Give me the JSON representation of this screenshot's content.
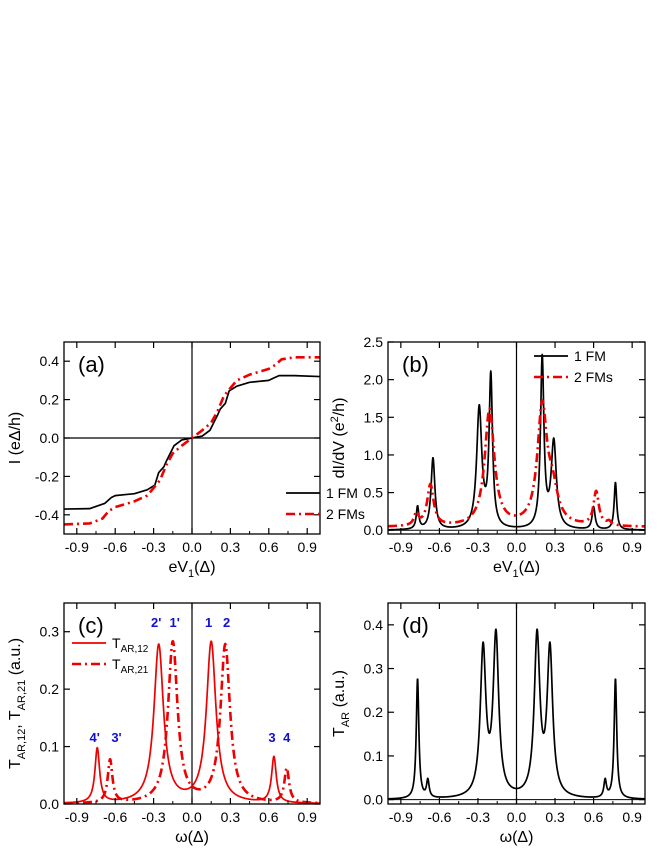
{
  "chart_data": [
    {
      "id": "a",
      "type": "line",
      "panel_label": "(a)",
      "xlabel": "eV1(Δ)",
      "xlabel_main": "eV",
      "xlabel_sub": "1",
      "xlabel_tail": "(Δ)",
      "ylabel": "I (eΔ/h)",
      "xlim": [
        -1.0,
        1.0
      ],
      "ylim": [
        -0.5,
        0.5
      ],
      "xticks": [
        -0.9,
        -0.6,
        -0.3,
        0.0,
        0.3,
        0.6,
        0.9
      ],
      "xtick_labels": [
        "-0.9",
        "-0.6",
        "-0.3",
        "0.0",
        "0.3",
        "0.6",
        "0.9"
      ],
      "yticks": [
        -0.4,
        -0.2,
        0.0,
        0.2,
        0.4
      ],
      "ytick_labels": [
        "-0.4",
        "-0.2",
        "0.0",
        "0.2",
        "0.4"
      ],
      "legend_position": "bottom-right",
      "series": [
        {
          "name": "1 FM",
          "color": "#000000",
          "style": "solid",
          "x": [
            -1.0,
            -0.8,
            -0.68,
            -0.63,
            -0.6,
            -0.45,
            -0.35,
            -0.29,
            -0.26,
            -0.22,
            -0.2,
            -0.17,
            -0.14,
            -0.08,
            0.0,
            0.08,
            0.14,
            0.17,
            0.2,
            0.22,
            0.26,
            0.29,
            0.35,
            0.45,
            0.6,
            0.63,
            0.68,
            0.8,
            1.0
          ],
          "y": [
            -0.37,
            -0.368,
            -0.34,
            -0.31,
            -0.3,
            -0.29,
            -0.27,
            -0.245,
            -0.18,
            -0.15,
            -0.12,
            -0.08,
            -0.04,
            -0.01,
            0.0,
            0.01,
            0.04,
            0.08,
            0.12,
            0.15,
            0.18,
            0.245,
            0.27,
            0.29,
            0.3,
            0.31,
            0.325,
            0.325,
            0.32
          ]
        },
        {
          "name": "2 FMs",
          "color": "#ee0000",
          "style": "dashdot",
          "x": [
            -1.0,
            -0.8,
            -0.7,
            -0.65,
            -0.6,
            -0.45,
            -0.35,
            -0.25,
            -0.2,
            -0.15,
            -0.08,
            0.0,
            0.08,
            0.15,
            0.2,
            0.25,
            0.35,
            0.45,
            0.6,
            0.65,
            0.7,
            0.8,
            1.0
          ],
          "y": [
            -0.45,
            -0.445,
            -0.42,
            -0.38,
            -0.36,
            -0.33,
            -0.3,
            -0.22,
            -0.14,
            -0.08,
            -0.04,
            0.0,
            0.04,
            0.08,
            0.14,
            0.22,
            0.3,
            0.33,
            0.36,
            0.38,
            0.41,
            0.42,
            0.42
          ]
        }
      ]
    },
    {
      "id": "b",
      "type": "line",
      "panel_label": "(b)",
      "xlabel": "eV1(Δ)",
      "xlabel_main": "eV",
      "xlabel_sub": "1",
      "xlabel_tail": "(Δ)",
      "ylabel": "dI/dV (e²/h)",
      "ylabel_main": "dI/dV (e",
      "ylabel_sup": "2",
      "ylabel_tail": "/h)",
      "xlim": [
        -1.0,
        1.0
      ],
      "ylim": [
        -0.05,
        2.5
      ],
      "xticks": [
        -0.9,
        -0.6,
        -0.3,
        0.0,
        0.3,
        0.6,
        0.9
      ],
      "xtick_labels": [
        "-0.9",
        "-0.6",
        "-0.3",
        "0.0",
        "0.3",
        "0.6",
        "0.9"
      ],
      "yticks": [
        0.0,
        0.5,
        1.0,
        1.5,
        2.0,
        2.5
      ],
      "ytick_labels": [
        "0.0",
        "0.5",
        "1.0",
        "1.5",
        "2.0",
        "2.5"
      ],
      "legend_position": "top-right",
      "series": [
        {
          "name": "1 FM",
          "color": "#000000",
          "style": "solid",
          "baseline": 0.0,
          "peaks": [
            [
              -0.77,
              0.3,
              0.012
            ],
            [
              -0.65,
              0.95,
              0.018
            ],
            [
              -0.29,
              1.6,
              0.024
            ],
            [
              -0.2,
              2.0,
              0.016
            ],
            [
              0.2,
              2.25,
              0.016
            ],
            [
              0.29,
              1.15,
              0.024
            ],
            [
              0.6,
              0.3,
              0.014
            ],
            [
              0.77,
              0.63,
              0.012
            ]
          ]
        },
        {
          "name": "2 FMs",
          "color": "#ee0000",
          "style": "dashdot",
          "baseline": 0.04,
          "peaks": [
            [
              -0.78,
              0.16,
              0.02
            ],
            [
              -0.67,
              0.55,
              0.03
            ],
            [
              -0.21,
              1.55,
              0.045
            ],
            [
              0.2,
              1.55,
              0.045
            ],
            [
              0.28,
              0.4,
              0.05
            ],
            [
              0.62,
              0.45,
              0.025
            ],
            [
              0.72,
              0.05,
              0.02
            ]
          ]
        }
      ]
    },
    {
      "id": "c",
      "type": "line",
      "panel_label": "(c)",
      "xlabel": "ω(Δ)",
      "ylabel": "TAR,12, TAR,21 (a.u.)",
      "xlim": [
        -1.0,
        1.0
      ],
      "ylim": [
        0.0,
        0.35
      ],
      "xticks": [
        -0.9,
        -0.6,
        -0.3,
        0.0,
        0.3,
        0.6,
        0.9
      ],
      "xtick_labels": [
        "-0.9",
        "-0.6",
        "-0.3",
        "0.0",
        "0.3",
        "0.6",
        "0.9"
      ],
      "yticks": [
        0.0,
        0.1,
        0.2,
        0.3
      ],
      "ytick_labels": [
        "0.0",
        "0.1",
        "0.2",
        "0.3"
      ],
      "legend_position": "top-left",
      "series": [
        {
          "name": "TAR,12",
          "color": "#ee0000",
          "style": "solid",
          "baseline": 0.0,
          "peaks": [
            [
              -0.74,
              0.095,
              0.022
            ],
            [
              -0.26,
              0.275,
              0.045
            ],
            [
              0.15,
              0.28,
              0.045
            ],
            [
              0.64,
              0.08,
              0.022
            ]
          ]
        },
        {
          "name": "TAR,21",
          "color": "#ee0000",
          "style": "dashdot",
          "baseline": 0.0,
          "peaks": [
            [
              -0.64,
              0.075,
              0.022
            ],
            [
              -0.15,
              0.28,
              0.045
            ],
            [
              0.26,
              0.275,
              0.045
            ],
            [
              0.74,
              0.06,
              0.022
            ]
          ]
        }
      ],
      "annotations": [
        {
          "text": "4'",
          "x": -0.76,
          "y": 0.108
        },
        {
          "text": "3'",
          "x": -0.59,
          "y": 0.108
        },
        {
          "text": "2'",
          "x": -0.28,
          "y": 0.308
        },
        {
          "text": "1'",
          "x": -0.135,
          "y": 0.308
        },
        {
          "text": "1",
          "x": 0.13,
          "y": 0.308
        },
        {
          "text": "2",
          "x": 0.27,
          "y": 0.308
        },
        {
          "text": "3",
          "x": 0.625,
          "y": 0.108
        },
        {
          "text": "4",
          "x": 0.74,
          "y": 0.108
        }
      ]
    },
    {
      "id": "d",
      "type": "line",
      "panel_label": "(d)",
      "xlabel": "ω(Δ)",
      "ylabel": "TAR (a.u.)",
      "xlim": [
        -1.0,
        1.0
      ],
      "ylim": [
        -0.01,
        0.45
      ],
      "xticks": [
        -0.9,
        -0.6,
        -0.3,
        0.0,
        0.3,
        0.6,
        0.9
      ],
      "xtick_labels": [
        "-0.9",
        "-0.6",
        "-0.3",
        "0.0",
        "0.3",
        "0.6",
        "0.9"
      ],
      "yticks": [
        0.0,
        0.1,
        0.2,
        0.3,
        0.4
      ],
      "ytick_labels": [
        "0.0",
        "0.1",
        "0.2",
        "0.3",
        "0.4"
      ],
      "series": [
        {
          "name": "",
          "color": "#000000",
          "style": "solid",
          "baseline": 0.0,
          "peaks": [
            [
              -0.77,
              0.275,
              0.012
            ],
            [
              -0.69,
              0.04,
              0.012
            ],
            [
              -0.26,
              0.335,
              0.026
            ],
            [
              -0.16,
              0.365,
              0.026
            ],
            [
              0.16,
              0.365,
              0.026
            ],
            [
              0.26,
              0.335,
              0.026
            ],
            [
              0.69,
              0.04,
              0.012
            ],
            [
              0.77,
              0.275,
              0.012
            ]
          ]
        }
      ]
    }
  ]
}
